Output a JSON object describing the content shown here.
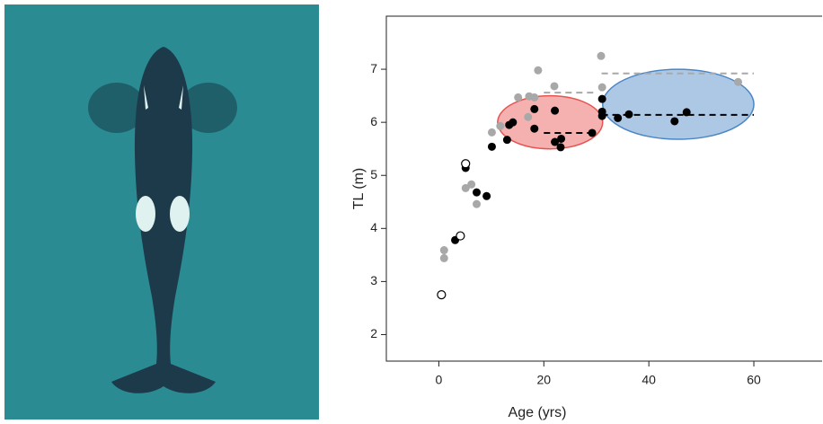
{
  "chart_data": {
    "type": "scatter",
    "xlabel": "Age (yrs)",
    "ylabel": "TL (m)",
    "xlim": [
      -10,
      73
    ],
    "ylim": [
      1.5,
      8
    ],
    "xticks": [
      0,
      20,
      40,
      60
    ],
    "yticks": [
      2,
      3,
      4,
      5,
      6,
      7
    ],
    "series": [
      {
        "color": "#a8a8a8",
        "filled": true,
        "x": [
          1,
          1,
          4.1,
          5.1,
          6.2,
          7.2,
          10.1,
          11.7,
          15.1,
          17.2,
          18.2,
          18.9,
          22,
          17,
          30.9,
          31.1,
          57
        ],
        "y": [
          3.59,
          3.44,
          3.85,
          4.76,
          4.83,
          4.46,
          5.81,
          5.93,
          6.47,
          6.49,
          6.47,
          6.98,
          6.68,
          6.1,
          7.25,
          6.66,
          6.76
        ]
      },
      {
        "color": "#000000",
        "filled": true,
        "x": [
          3.1,
          5.1,
          7.2,
          9.1,
          10.1,
          13,
          13.4,
          14.1,
          18.2,
          18.2,
          22.1,
          22.1,
          23.2,
          23.3,
          29.2,
          31.1,
          31.1,
          31.1,
          34.1,
          36.2,
          44.9,
          47.2
        ],
        "y": [
          3.78,
          5.14,
          4.68,
          4.61,
          5.54,
          5.67,
          5.95,
          6.0,
          6.25,
          5.88,
          6.22,
          5.63,
          5.53,
          5.69,
          5.8,
          6.44,
          6.2,
          6.12,
          6.08,
          6.15,
          6.02,
          6.19
        ]
      },
      {
        "color": "#000000",
        "filled": false,
        "x": [
          0.5,
          5.1,
          4.1
        ],
        "y": [
          2.75,
          5.22,
          3.86
        ]
      }
    ],
    "ellipses": [
      {
        "cx": 21.2,
        "cy": 6.0,
        "rx": 10,
        "ry": 0.5,
        "color": "#e8534f"
      },
      {
        "cx": 45.6,
        "cy": 6.34,
        "rx": 14.4,
        "ry": 0.66,
        "color": "#4a86c6"
      }
    ],
    "reference_lines": [
      {
        "x": [
          20,
          30
        ],
        "y": 6.56,
        "color": "#a8a8a8"
      },
      {
        "x": [
          20,
          29.5
        ],
        "y": 5.8,
        "color": "#000000"
      },
      {
        "x": [
          31,
          60
        ],
        "y": 6.92,
        "color": "#a8a8a8"
      },
      {
        "x": [
          31,
          60
        ],
        "y": 6.14,
        "color": "#000000"
      }
    ]
  }
}
